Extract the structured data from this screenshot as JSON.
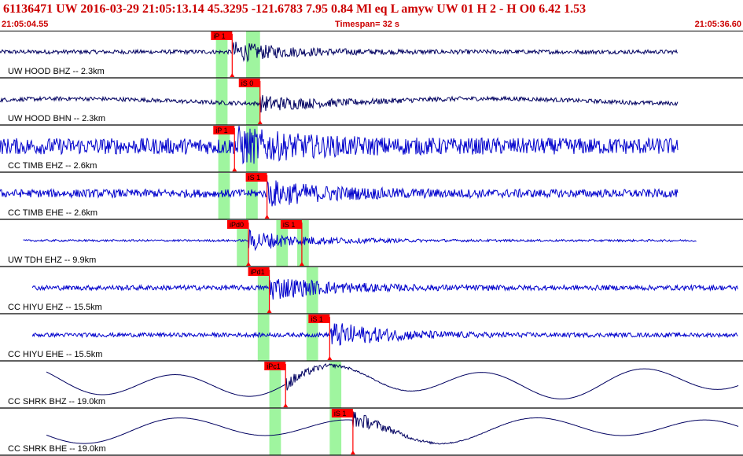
{
  "header": {
    "title": "61136471 UW 2016-03-29 21:05:13.14   45.3295 -121.6783   7.95  0.84 Ml  eq  L amyw    UW 01  H   2  -  H O0    6.42  1.53",
    "start_time": "21:05:04.55",
    "timespan": "Timespan=  32 s",
    "end_time": "21:05:36.60"
  },
  "colors": {
    "title": "#cc0000",
    "trace_velocity_short": "#000060",
    "trace_cc": "#0000cc",
    "pick_box": "#ff0000",
    "pick_line": "#ff0000",
    "shade": "#9ff59f",
    "divider": "#000000"
  },
  "chart_data": {
    "type": "line",
    "title": "",
    "x_range_seconds": [
      0,
      32
    ],
    "channels": [
      {
        "label": "UW HOOD BHZ -- 2.3km",
        "color": "#000060",
        "style": "noise",
        "amp": 0.1,
        "burst": 0.45,
        "freq": 2.0,
        "start": 0,
        "end": 29.2,
        "shades": [
          [
            9.3,
            9.8
          ],
          [
            10.6,
            11.2
          ]
        ],
        "picks": [
          {
            "label": "iP 1",
            "t": 10.0
          }
        ]
      },
      {
        "label": "UW HOOD BHN -- 2.3km",
        "color": "#000060",
        "style": "noise_drift",
        "amp": 0.1,
        "burst": 0.35,
        "freq": 2.0,
        "start": 0,
        "end": 29.2,
        "shades": [
          [
            9.3,
            9.8
          ],
          [
            10.6,
            11.2
          ]
        ],
        "picks": [
          {
            "label": "iS 0",
            "t": 11.2
          }
        ]
      },
      {
        "label": "CC TIMB EHZ -- 2.6km",
        "color": "#0000cc",
        "style": "noise",
        "amp": 0.4,
        "burst": 0.7,
        "freq": 3.0,
        "start": 0,
        "end": 29.2,
        "shades": [
          [
            9.4,
            9.9
          ],
          [
            10.6,
            11.1
          ]
        ],
        "picks": [
          {
            "label": "iP 1",
            "t": 10.1
          }
        ]
      },
      {
        "label": "CC TIMB EHE -- 2.6km",
        "color": "#0000cc",
        "style": "noise",
        "amp": 0.2,
        "burst": 0.55,
        "freq": 3.0,
        "start": 0,
        "end": 29.2,
        "shades": [
          [
            9.4,
            9.9
          ],
          [
            10.6,
            11.1
          ]
        ],
        "picks": [
          {
            "label": "iS 1",
            "t": 11.5
          }
        ]
      },
      {
        "label": "UW TDH EHZ -- 9.9km",
        "color": "#0000cc",
        "style": "noise",
        "amp": 0.05,
        "burst": 0.5,
        "freq": 3.0,
        "start": 1.0,
        "end": 30.0,
        "shades": [
          [
            10.2,
            10.7
          ],
          [
            11.9,
            12.4
          ],
          [
            12.8,
            13.3
          ]
        ],
        "picks": [
          {
            "label": "iPd0",
            "t": 10.7
          },
          {
            "label": "iS 1",
            "t": 13.0
          }
        ]
      },
      {
        "label": "CC HIYU EHZ -- 15.5km",
        "color": "#0000cc",
        "style": "noise",
        "amp": 0.12,
        "burst": 0.55,
        "freq": 3.0,
        "start": 1.4,
        "end": 31.8,
        "shades": [
          [
            11.1,
            11.6
          ],
          [
            13.2,
            13.7
          ]
        ],
        "picks": [
          {
            "label": "iPd1",
            "t": 11.6
          }
        ]
      },
      {
        "label": "CC HIYU EHE -- 15.5km",
        "color": "#0000cc",
        "style": "noise",
        "amp": 0.1,
        "burst": 0.6,
        "freq": 3.0,
        "start": 1.4,
        "end": 31.8,
        "shades": [
          [
            11.1,
            11.6
          ],
          [
            13.2,
            13.7
          ]
        ],
        "picks": [
          {
            "label": "iS 1",
            "t": 14.2
          }
        ]
      },
      {
        "label": "CC SHRK BHZ -- 19.0km",
        "color": "#000060",
        "style": "wave",
        "amp": 0.6,
        "burst": 0.06,
        "freq": 0.15,
        "start": 2.0,
        "end": 31.8,
        "shades": [
          [
            11.6,
            12.1
          ],
          [
            14.2,
            14.7
          ]
        ],
        "picks": [
          {
            "label": "iPc1",
            "t": 12.3
          }
        ]
      },
      {
        "label": "CC SHRK BHE -- 19.0km",
        "color": "#000060",
        "style": "wave",
        "amp": 0.5,
        "burst": 0.08,
        "freq": 0.13,
        "start": 2.0,
        "end": 31.8,
        "shades": [
          [
            11.6,
            12.1
          ],
          [
            14.2,
            14.7
          ]
        ],
        "picks": [
          {
            "label": "iS 1",
            "t": 15.2
          }
        ]
      }
    ]
  }
}
